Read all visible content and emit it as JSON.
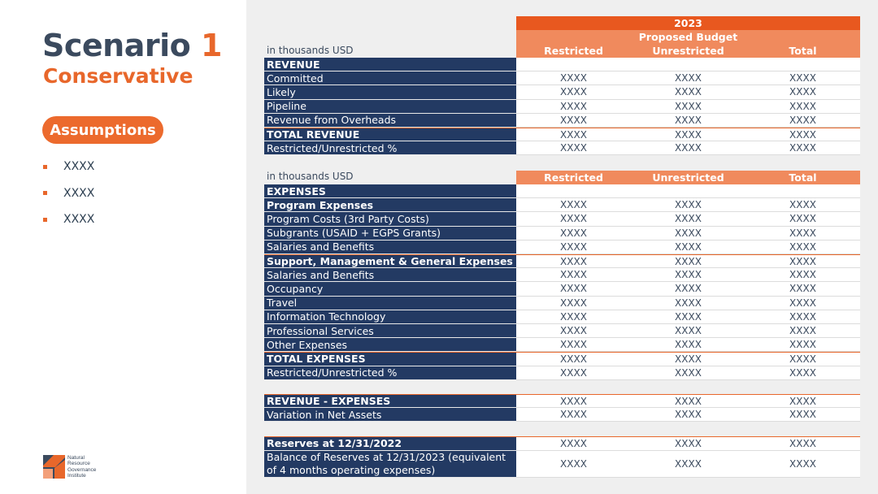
{
  "title": {
    "scenario": "Scenario",
    "number": "1",
    "subtitle": "Conservative"
  },
  "assumptions": {
    "label": "Assumptions",
    "items": [
      "XXXX",
      "XXXX",
      "XXXX"
    ]
  },
  "logo": {
    "lines": [
      "Natural",
      "Resource",
      "Governance",
      "Institute"
    ]
  },
  "header": {
    "year": "2023",
    "proposed": "Proposed Budget",
    "units": "in thousands USD",
    "cols": [
      "Restricted",
      "Unrestricted",
      "Total"
    ]
  },
  "revenue_rows": [
    {
      "label": "REVENUE",
      "bold": true,
      "values": []
    },
    {
      "label": "Committed",
      "bold": false,
      "values": [
        "XXXX",
        "XXXX",
        "XXXX"
      ]
    },
    {
      "label": "Likely",
      "bold": false,
      "values": [
        "XXXX",
        "XXXX",
        "XXXX"
      ]
    },
    {
      "label": "Pipeline",
      "bold": false,
      "values": [
        "XXXX",
        "XXXX",
        "XXXX"
      ]
    },
    {
      "label": "Revenue from Overheads",
      "bold": false,
      "values": [
        "XXXX",
        "XXXX",
        "XXXX"
      ]
    },
    {
      "label": "TOTAL REVENUE",
      "bold": true,
      "values": [
        "XXXX",
        "XXXX",
        "XXXX"
      ]
    },
    {
      "label": "Restricted/Unrestricted %",
      "bold": false,
      "values": [
        "XXXX",
        "XXXX",
        "XXXX"
      ]
    }
  ],
  "expense_rows": [
    {
      "label": "EXPENSES",
      "bold": true,
      "values": []
    },
    {
      "label": "Program Expenses",
      "bold": true,
      "values": [
        "XXXX",
        "XXXX",
        "XXXX"
      ]
    },
    {
      "label": "Program Costs (3rd Party Costs)",
      "bold": false,
      "values": [
        "XXXX",
        "XXXX",
        "XXXX"
      ]
    },
    {
      "label": "Subgrants (USAID + EGPS Grants)",
      "bold": false,
      "values": [
        "XXXX",
        "XXXX",
        "XXXX"
      ]
    },
    {
      "label": "Salaries and Benefits",
      "bold": false,
      "values": [
        "XXXX",
        "XXXX",
        "XXXX"
      ]
    },
    {
      "label": "Support, Management & General Expenses",
      "bold": true,
      "values": [
        "XXXX",
        "XXXX",
        "XXXX"
      ]
    },
    {
      "label": "Salaries and Benefits",
      "bold": false,
      "values": [
        "XXXX",
        "XXXX",
        "XXXX"
      ]
    },
    {
      "label": "Occupancy",
      "bold": false,
      "values": [
        "XXXX",
        "XXXX",
        "XXXX"
      ]
    },
    {
      "label": "Travel",
      "bold": false,
      "values": [
        "XXXX",
        "XXXX",
        "XXXX"
      ]
    },
    {
      "label": "Information Technology",
      "bold": false,
      "values": [
        "XXXX",
        "XXXX",
        "XXXX"
      ]
    },
    {
      "label": "Professional Services",
      "bold": false,
      "values": [
        "XXXX",
        "XXXX",
        "XXXX"
      ]
    },
    {
      "label": "Other Expenses",
      "bold": false,
      "values": [
        "XXXX",
        "XXXX",
        "XXXX"
      ]
    },
    {
      "label": "TOTAL EXPENSES",
      "bold": true,
      "values": [
        "XXXX",
        "XXXX",
        "XXXX"
      ]
    },
    {
      "label": "Restricted/Unrestricted %",
      "bold": false,
      "values": [
        "XXXX",
        "XXXX",
        "XXXX"
      ]
    }
  ],
  "net_rows": [
    {
      "label": "REVENUE - EXPENSES",
      "bold": true,
      "values": [
        "XXXX",
        "XXXX",
        "XXXX"
      ]
    },
    {
      "label": "Variation in Net Assets",
      "bold": false,
      "values": [
        "XXXX",
        "XXXX",
        "XXXX"
      ]
    }
  ],
  "reserve_rows": [
    {
      "label": "Reserves at 12/31/2022",
      "bold": true,
      "values": [
        "XXXX",
        "XXXX",
        "XXXX"
      ]
    },
    {
      "label": "Balance of Reserves at 12/31/2023 (equivalent of 4 months operating expenses)",
      "bold": false,
      "values": [
        "XXXX",
        "XXXX",
        "XXXX"
      ]
    }
  ]
}
